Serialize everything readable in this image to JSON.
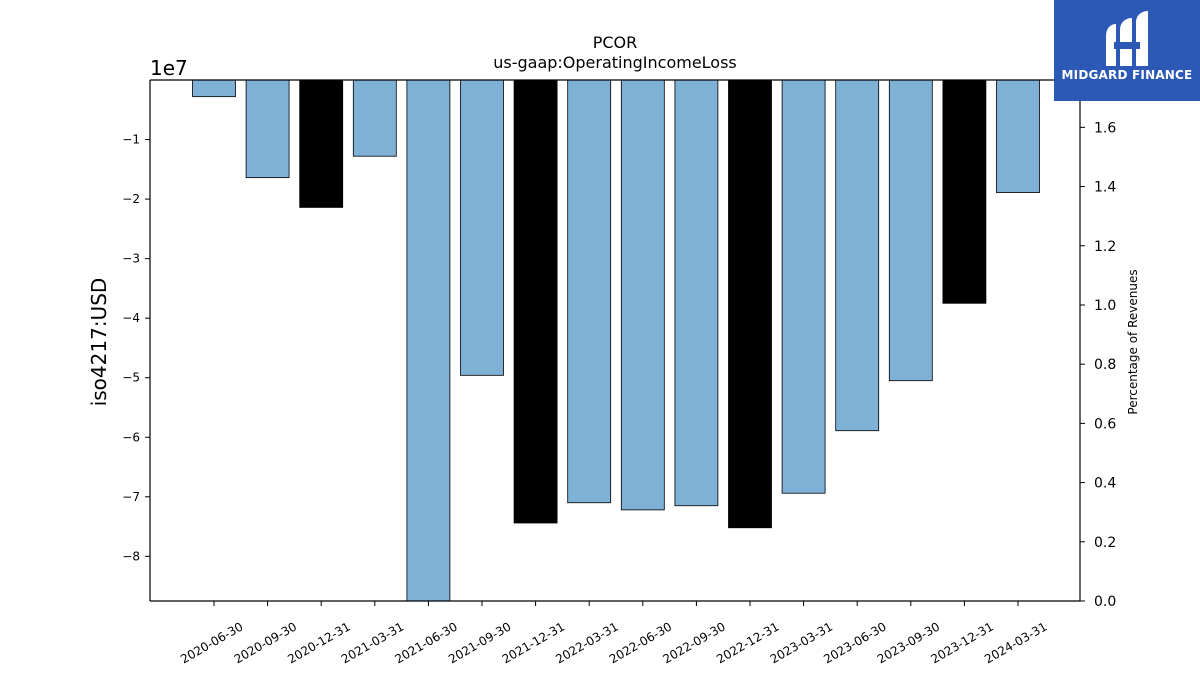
{
  "chart_data": {
    "type": "bar",
    "title": "PCOR",
    "subtitle": "us-gaap:OperatingIncomeLoss",
    "ylabel": "iso4217:USD",
    "y2label": "Percentage of Revenues",
    "y_offset_label": "1e7",
    "ylim": [
      -87500000,
      0
    ],
    "y2lim": [
      0.0,
      1.76
    ],
    "yticks": [
      -1,
      -2,
      -3,
      -4,
      -5,
      -6,
      -7,
      -8
    ],
    "yticklabels": [
      "−1",
      "−2",
      "−3",
      "−4",
      "−5",
      "−6",
      "−7",
      "−8"
    ],
    "y2ticks": [
      0.0,
      0.2,
      0.4,
      0.6,
      0.8,
      1.0,
      1.2,
      1.4,
      1.6
    ],
    "y2ticklabels": [
      "0.0",
      "0.2",
      "0.4",
      "0.6",
      "0.8",
      "1.0",
      "1.2",
      "1.4",
      "1.6"
    ],
    "categories": [
      "2020-06-30",
      "2020-09-30",
      "2020-12-31",
      "2021-03-31",
      "2021-06-30",
      "2021-09-30",
      "2021-12-31",
      "2022-03-31",
      "2022-06-30",
      "2022-09-30",
      "2022-12-31",
      "2023-03-31",
      "2023-06-30",
      "2023-09-30",
      "2023-12-31",
      "2024-03-31"
    ],
    "values": [
      -2800000,
      -16400000,
      -21400000,
      -12800000,
      -87500000,
      -49600000,
      -74400000,
      -71000000,
      -72200000,
      -71500000,
      -75200000,
      -69400000,
      -58900000,
      -50500000,
      -37500000,
      -18900000
    ],
    "colors": [
      "#7fb0d5",
      "#7fb0d5",
      "#000000",
      "#7fb0d5",
      "#7fb0d5",
      "#7fb0d5",
      "#000000",
      "#7fb0d5",
      "#7fb0d5",
      "#7fb0d5",
      "#000000",
      "#7fb0d5",
      "#7fb0d5",
      "#7fb0d5",
      "#000000",
      "#7fb0d5"
    ],
    "grid": false
  },
  "logo": {
    "text": "MIDGARD FINANCE",
    "background": "#2b59b5"
  }
}
